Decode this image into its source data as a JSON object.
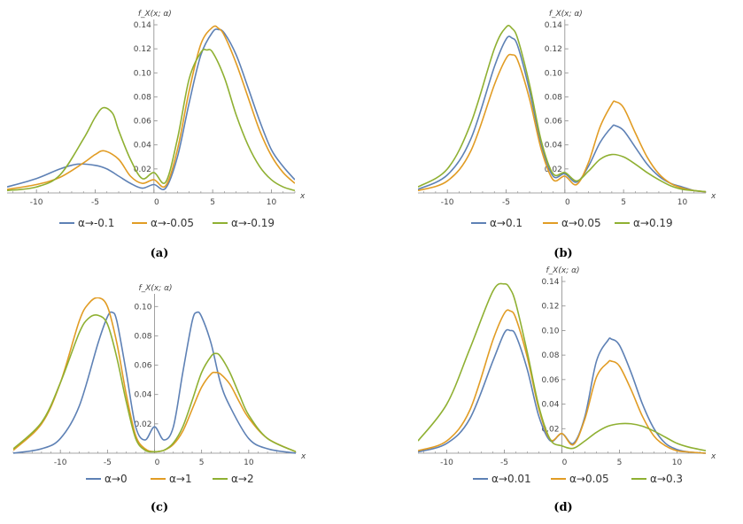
{
  "colors": {
    "blue": "#5E81B5",
    "orange": "#E19C24",
    "green": "#8FB032",
    "axis": "#888888"
  },
  "chart_data": [
    {
      "panel": "a",
      "caption": "(a)",
      "type": "line",
      "ylabel": "f_X(x; α)",
      "xlabel": "x",
      "xlim": [
        -12.5,
        12
      ],
      "ylim": [
        0,
        0.14
      ],
      "xticks": [
        -10,
        -5,
        0,
        5,
        10
      ],
      "xtick_labels": [
        "-10",
        "-5",
        "0",
        "5",
        "10"
      ],
      "yticks": [
        0.02,
        0.04,
        0.06,
        0.08,
        0.1,
        0.12,
        0.14
      ],
      "ytick_labels": [
        "0.02",
        "0.04",
        "0.06",
        "0.08",
        "0.10",
        "0.12",
        "0.14"
      ],
      "series": [
        {
          "name": "α→-0.1",
          "color": "blue",
          "x": [
            -12.5,
            -10,
            -8,
            -6.5,
            -5,
            -4,
            -3,
            -2,
            -1,
            0,
            1,
            2,
            3,
            4,
            5,
            5.5,
            6,
            7,
            8,
            9,
            10,
            11,
            12
          ],
          "y": [
            0.005,
            0.012,
            0.02,
            0.024,
            0.023,
            0.02,
            0.014,
            0.008,
            0.004,
            0.007,
            0.004,
            0.03,
            0.075,
            0.115,
            0.134,
            0.136,
            0.133,
            0.115,
            0.088,
            0.06,
            0.036,
            0.022,
            0.011
          ]
        },
        {
          "name": "α→-0.05",
          "color": "orange",
          "x": [
            -12.5,
            -10,
            -8,
            -6,
            -5,
            -4.2,
            -3,
            -2,
            -1,
            0,
            1,
            2,
            3,
            4,
            5,
            5.5,
            6,
            7,
            8,
            9,
            10,
            11,
            12
          ],
          "y": [
            0.003,
            0.007,
            0.013,
            0.025,
            0.032,
            0.035,
            0.028,
            0.014,
            0.008,
            0.011,
            0.006,
            0.036,
            0.085,
            0.124,
            0.138,
            0.137,
            0.131,
            0.108,
            0.08,
            0.052,
            0.031,
            0.017,
            0.008
          ]
        },
        {
          "name": "α→-0.19",
          "color": "green",
          "x": [
            -12.5,
            -10,
            -8,
            -6,
            -5,
            -4.3,
            -3.5,
            -3,
            -2,
            -1,
            0,
            1,
            2,
            3,
            4,
            4.5,
            5,
            6,
            7,
            8,
            9,
            10,
            11,
            12
          ],
          "y": [
            0.002,
            0.005,
            0.015,
            0.045,
            0.063,
            0.071,
            0.066,
            0.052,
            0.028,
            0.012,
            0.017,
            0.009,
            0.045,
            0.095,
            0.117,
            0.119,
            0.117,
            0.096,
            0.065,
            0.04,
            0.022,
            0.011,
            0.005,
            0.002
          ]
        }
      ],
      "legend": [
        "α→-0.1",
        "α→-0.05",
        "α→-0.19"
      ]
    },
    {
      "panel": "b",
      "caption": "(b)",
      "type": "line",
      "ylabel": "f_X(x; α)",
      "xlabel": "x",
      "xlim": [
        -12.5,
        12
      ],
      "ylim": [
        0,
        0.14
      ],
      "xticks": [
        -10,
        -5,
        0,
        5,
        10
      ],
      "xtick_labels": [
        "-10",
        "-5",
        "0",
        "5",
        "10"
      ],
      "yticks": [
        0.02,
        0.04,
        0.06,
        0.08,
        0.1,
        0.12,
        0.14
      ],
      "ytick_labels": [
        "0.02",
        "0.04",
        "0.06",
        "0.08",
        "0.10",
        "0.12",
        "0.14"
      ],
      "series": [
        {
          "name": "α→0.1",
          "color": "blue",
          "x": [
            -12.5,
            -10,
            -8,
            -6,
            -5,
            -4.5,
            -4,
            -3,
            -2,
            -1,
            0,
            1,
            2,
            3,
            4,
            4.3,
            5,
            6,
            7,
            8,
            9,
            10,
            11,
            12
          ],
          "y": [
            0.003,
            0.015,
            0.045,
            0.105,
            0.128,
            0.129,
            0.122,
            0.085,
            0.04,
            0.014,
            0.016,
            0.009,
            0.022,
            0.042,
            0.055,
            0.056,
            0.052,
            0.038,
            0.024,
            0.014,
            0.008,
            0.005,
            0.002,
            0.001
          ]
        },
        {
          "name": "α→0.05",
          "color": "orange",
          "x": [
            -12.5,
            -10,
            -8,
            -6,
            -5,
            -4.5,
            -4,
            -3,
            -2,
            -1,
            0,
            1,
            2,
            3,
            4,
            4.3,
            5,
            6,
            7,
            8,
            9,
            10,
            11,
            12
          ],
          "y": [
            0.002,
            0.01,
            0.035,
            0.09,
            0.112,
            0.115,
            0.11,
            0.078,
            0.036,
            0.011,
            0.014,
            0.007,
            0.025,
            0.055,
            0.074,
            0.076,
            0.071,
            0.05,
            0.03,
            0.016,
            0.008,
            0.004,
            0.002,
            0.001
          ]
        },
        {
          "name": "α→0.19",
          "color": "green",
          "x": [
            -12.5,
            -10,
            -8,
            -6,
            -5,
            -4.5,
            -4,
            -3,
            -2,
            -1,
            0,
            1,
            2,
            3,
            4,
            5,
            6,
            7,
            8,
            9,
            10,
            11,
            12
          ],
          "y": [
            0.005,
            0.02,
            0.058,
            0.12,
            0.138,
            0.137,
            0.128,
            0.09,
            0.043,
            0.016,
            0.017,
            0.01,
            0.018,
            0.028,
            0.032,
            0.03,
            0.024,
            0.017,
            0.011,
            0.006,
            0.003,
            0.002,
            0.001
          ]
        }
      ],
      "legend": [
        "α→0.1",
        "α→0.05",
        "α→0.19"
      ]
    },
    {
      "panel": "c",
      "caption": "(c)",
      "type": "line",
      "ylabel": "f_X(x; α)",
      "xlabel": "x",
      "xlim": [
        -15,
        15
      ],
      "ylim": [
        0,
        0.105
      ],
      "xticks": [
        -10,
        -5,
        0,
        5,
        10
      ],
      "xtick_labels": [
        "-10",
        "-5",
        "0",
        "5",
        "10"
      ],
      "yticks": [
        0.02,
        0.04,
        0.06,
        0.08,
        0.1
      ],
      "ytick_labels": [
        "0.02",
        "0.04",
        "0.06",
        "0.08",
        "0.10"
      ],
      "series": [
        {
          "name": "α→0",
          "color": "blue",
          "x": [
            -15,
            -12,
            -10,
            -8,
            -6,
            -5,
            -4.5,
            -4,
            -3,
            -2,
            -1,
            0,
            1,
            2,
            3,
            4,
            4.5,
            5,
            6,
            7,
            8,
            10,
            12,
            15
          ],
          "y": [
            0.0,
            0.003,
            0.01,
            0.032,
            0.075,
            0.093,
            0.096,
            0.09,
            0.055,
            0.018,
            0.009,
            0.018,
            0.009,
            0.018,
            0.055,
            0.09,
            0.096,
            0.093,
            0.075,
            0.048,
            0.032,
            0.01,
            0.003,
            0.0
          ]
        },
        {
          "name": "α→1",
          "color": "orange",
          "x": [
            -15,
            -12,
            -10,
            -8,
            -7,
            -6,
            -5,
            -4,
            -3,
            -2,
            -1,
            0,
            1,
            2,
            3,
            4,
            5,
            6,
            6.5,
            7,
            8,
            9,
            10,
            12,
            15
          ],
          "y": [
            0.002,
            0.02,
            0.048,
            0.09,
            0.102,
            0.106,
            0.1,
            0.075,
            0.04,
            0.012,
            0.003,
            0.001,
            0.002,
            0.006,
            0.015,
            0.03,
            0.045,
            0.054,
            0.055,
            0.054,
            0.047,
            0.035,
            0.024,
            0.01,
            0.001
          ]
        },
        {
          "name": "α→2",
          "color": "green",
          "x": [
            -15,
            -12,
            -10,
            -8,
            -7,
            -6,
            -5,
            -4,
            -3,
            -2,
            -1,
            0,
            1,
            2,
            3,
            4,
            5,
            6,
            6.5,
            7,
            8,
            9,
            10,
            12,
            15
          ],
          "y": [
            0.003,
            0.021,
            0.048,
            0.082,
            0.092,
            0.094,
            0.088,
            0.065,
            0.035,
            0.01,
            0.002,
            0.001,
            0.002,
            0.007,
            0.018,
            0.036,
            0.055,
            0.066,
            0.068,
            0.066,
            0.055,
            0.04,
            0.026,
            0.01,
            0.001
          ]
        }
      ],
      "legend": [
        "α→0",
        "α→1",
        "α→2"
      ]
    },
    {
      "panel": "d",
      "caption": "(d)",
      "type": "line",
      "ylabel": "f_X(x; α)",
      "xlabel": "x",
      "xlim": [
        -12.5,
        12.5
      ],
      "ylim": [
        0,
        0.14
      ],
      "xticks": [
        -10,
        -5,
        0,
        5,
        10
      ],
      "xtick_labels": [
        "-10",
        "-5",
        "0",
        "5",
        "10"
      ],
      "yticks": [
        0.02,
        0.04,
        0.06,
        0.08,
        0.1,
        0.12,
        0.14
      ],
      "ytick_labels": [
        "0.02",
        "0.04",
        "0.06",
        "0.08",
        "0.10",
        "0.12",
        "0.14"
      ],
      "series": [
        {
          "name": "α→0.01",
          "color": "blue",
          "x": [
            -12.5,
            -10,
            -8,
            -6,
            -5,
            -4.5,
            -4,
            -3,
            -2,
            -1,
            0,
            1,
            2,
            3,
            4,
            4.3,
            5,
            6,
            7,
            8,
            9,
            10,
            11,
            12.5
          ],
          "y": [
            0.001,
            0.008,
            0.028,
            0.075,
            0.098,
            0.1,
            0.096,
            0.068,
            0.03,
            0.01,
            0.016,
            0.008,
            0.03,
            0.075,
            0.092,
            0.093,
            0.088,
            0.066,
            0.04,
            0.02,
            0.008,
            0.003,
            0.001,
            0.0
          ]
        },
        {
          "name": "α→0.05",
          "color": "orange",
          "x": [
            -12.5,
            -10,
            -8,
            -6,
            -5,
            -4.5,
            -4,
            -3,
            -2,
            -1,
            0,
            1,
            2,
            3,
            4,
            4.3,
            5,
            6,
            7,
            8,
            9,
            10,
            11,
            12.5
          ],
          "y": [
            0.002,
            0.01,
            0.035,
            0.092,
            0.114,
            0.116,
            0.11,
            0.078,
            0.036,
            0.011,
            0.016,
            0.007,
            0.028,
            0.062,
            0.074,
            0.075,
            0.071,
            0.052,
            0.03,
            0.014,
            0.006,
            0.002,
            0.001,
            0.0
          ]
        },
        {
          "name": "α→0.3",
          "color": "green",
          "x": [
            -12.5,
            -10,
            -8,
            -6,
            -5,
            -4.5,
            -4,
            -3,
            -2,
            -1,
            0,
            1,
            2,
            3,
            4,
            5,
            6,
            7,
            8,
            9,
            10,
            11,
            12.5
          ],
          "y": [
            0.01,
            0.04,
            0.085,
            0.132,
            0.138,
            0.134,
            0.122,
            0.082,
            0.038,
            0.011,
            0.006,
            0.004,
            0.01,
            0.017,
            0.022,
            0.024,
            0.024,
            0.022,
            0.018,
            0.013,
            0.008,
            0.005,
            0.002
          ]
        }
      ],
      "legend": [
        "α→0.01",
        "α→0.05",
        "α→0.3"
      ]
    }
  ]
}
